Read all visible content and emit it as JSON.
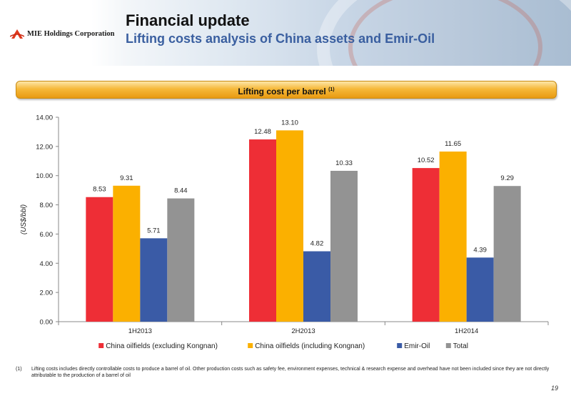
{
  "header": {
    "company_name": "MIE Holdings Corporation",
    "title": "Financial update",
    "subtitle": "Lifting costs analysis of China assets and Emir-Oil"
  },
  "banner": {
    "label": "Lifting cost per barrel",
    "footnote_ref": "(1)"
  },
  "chart_data": {
    "type": "bar",
    "categories": [
      "1H2013",
      "2H2013",
      "1H2014"
    ],
    "series": [
      {
        "name": "China oilfields (excluding Kongnan)",
        "color": "#ee2e36",
        "values": [
          8.53,
          12.48,
          10.52
        ],
        "labels": [
          "8.53",
          "12.48",
          "10.52"
        ]
      },
      {
        "name": "China oilfields (including Kongnan)",
        "color": "#fbb000",
        "values": [
          9.31,
          13.1,
          11.65
        ],
        "labels": [
          "9.31",
          "13.10",
          "11.65"
        ]
      },
      {
        "name": "Emir-Oil",
        "color": "#3a5ba6",
        "values": [
          5.71,
          4.82,
          4.39
        ],
        "labels": [
          "5.71",
          "4.82",
          "4.39"
        ]
      },
      {
        "name": "Total",
        "color": "#939393",
        "values": [
          8.44,
          10.33,
          9.29
        ],
        "labels": [
          "8.44",
          "10.33",
          "9.29"
        ]
      }
    ],
    "ylabel": "(US$/bbl)",
    "ylim": [
      0,
      14
    ],
    "yticks": [
      "0.00",
      "2.00",
      "4.00",
      "6.00",
      "8.00",
      "10.00",
      "12.00",
      "14.00"
    ],
    "grid": false,
    "legend": "bottom"
  },
  "footnote": {
    "marker": "(1)",
    "text": "Lifting costs includes directly controllable costs to produce a barrel of oil. Other production costs such as safety fee, environment expenses, technical & research expense and overhead have not been included since they are not directly attributable to the production of a barrel of oil"
  },
  "page_number": "19"
}
